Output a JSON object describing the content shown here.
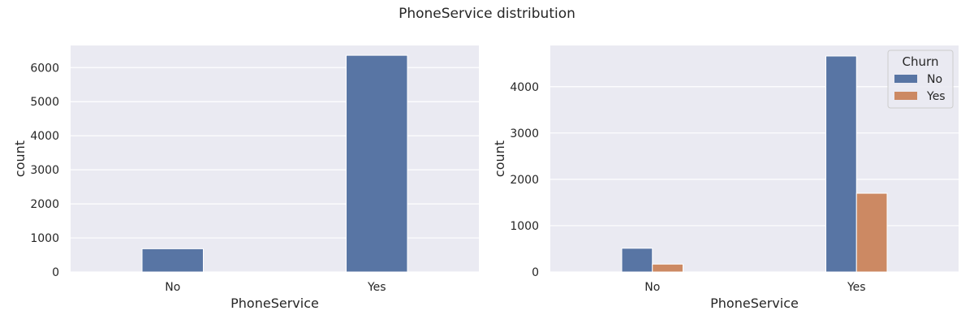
{
  "figure": {
    "title": "PhoneService distribution"
  },
  "chart_data": [
    {
      "type": "bar",
      "title": "",
      "xlabel": "PhoneService",
      "ylabel": "count",
      "categories": [
        "No",
        "Yes"
      ],
      "series": [
        {
          "values": [
            682,
            6361
          ]
        }
      ],
      "ylim": [
        0,
        6650
      ],
      "yticks": [
        0,
        1000,
        2000,
        3000,
        4000,
        5000,
        6000
      ],
      "grid": true,
      "colors": [
        "#5875a4"
      ]
    },
    {
      "type": "bar",
      "title": "",
      "xlabel": "PhoneService",
      "ylabel": "count",
      "categories": [
        "No",
        "Yes"
      ],
      "series": [
        {
          "name": "No",
          "values": [
            512,
            4662
          ]
        },
        {
          "name": "Yes",
          "values": [
            170,
            1699
          ]
        }
      ],
      "ylim": [
        0,
        4890
      ],
      "yticks": [
        0,
        1000,
        2000,
        3000,
        4000
      ],
      "grid": true,
      "legend": {
        "title": "Churn",
        "position": "top-right"
      },
      "colors": [
        "#5875a4",
        "#cc8963"
      ]
    }
  ]
}
